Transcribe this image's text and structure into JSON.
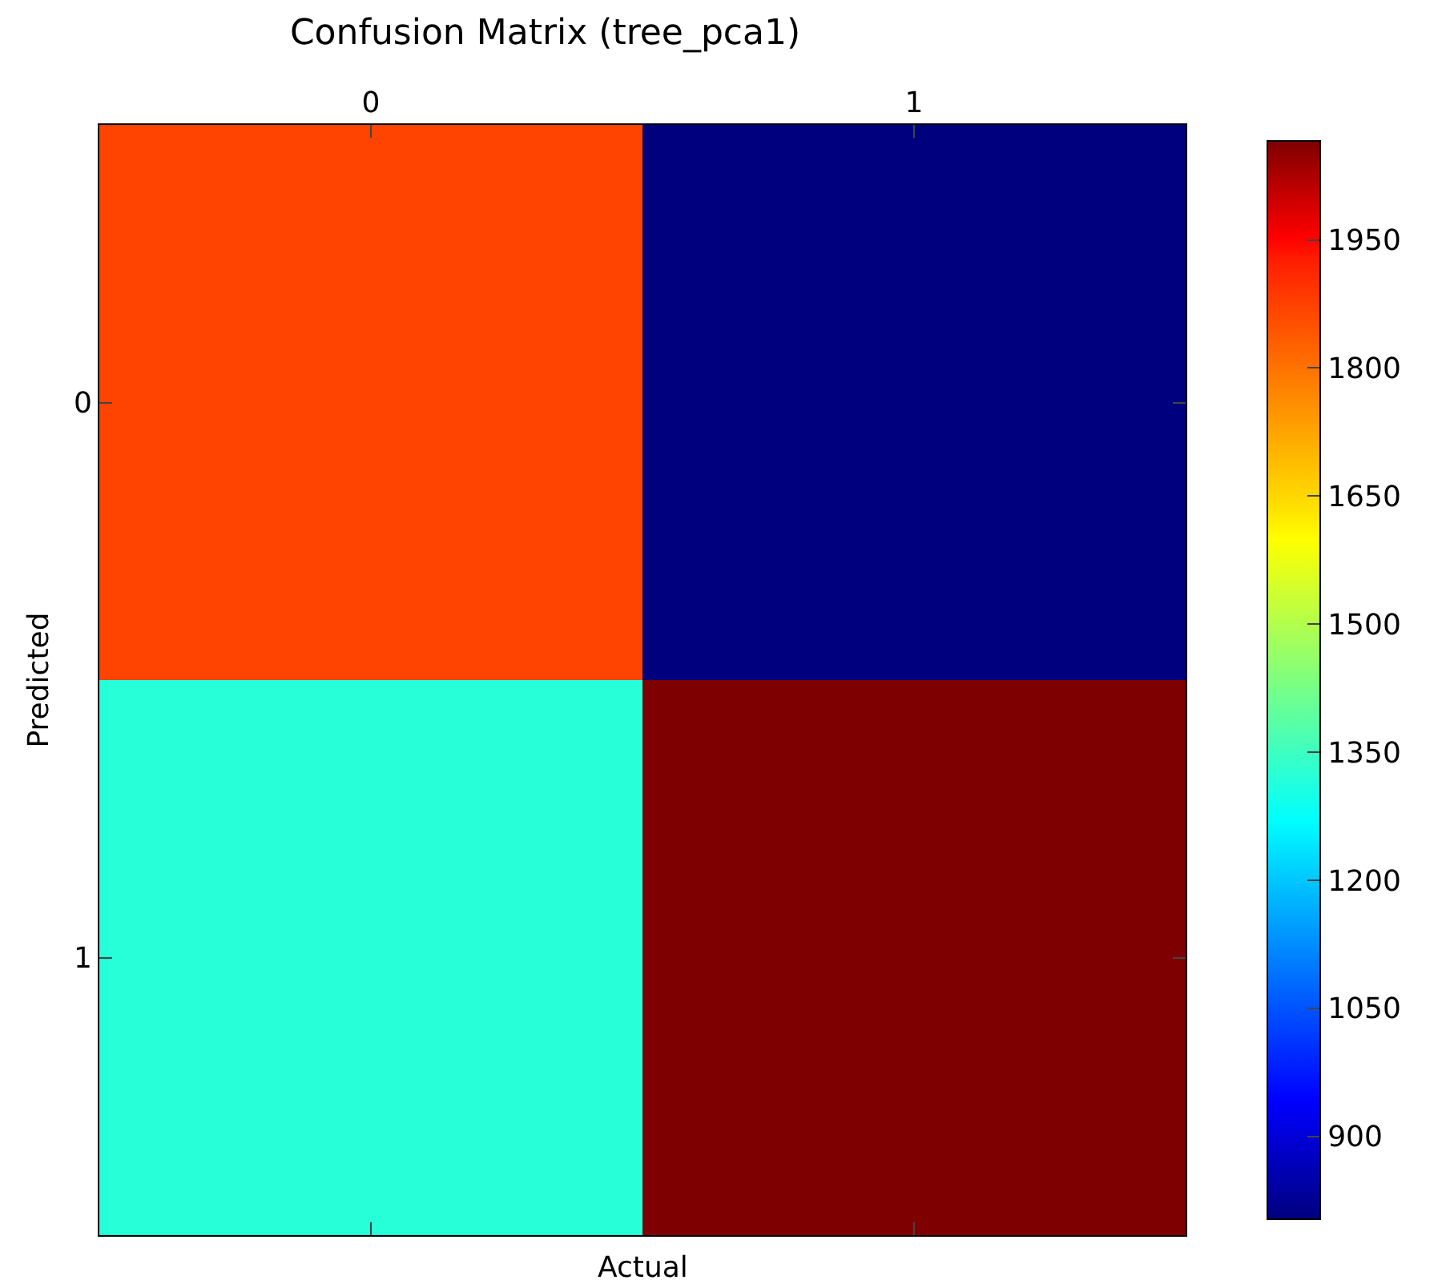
{
  "chart_data": {
    "type": "heatmap",
    "title": "Confusion Matrix (tree_pca1)",
    "xlabel": "Actual",
    "ylabel": "Predicted",
    "categories": [
      "0",
      "1"
    ],
    "y_categories": [
      "0",
      "1"
    ],
    "cells": [
      [
        1870,
        803
      ],
      [
        1320,
        2066
      ]
    ],
    "clim": [
      803,
      2066
    ],
    "cticks": [
      900,
      1050,
      1200,
      1350,
      1500,
      1650,
      1800,
      1950
    ]
  }
}
